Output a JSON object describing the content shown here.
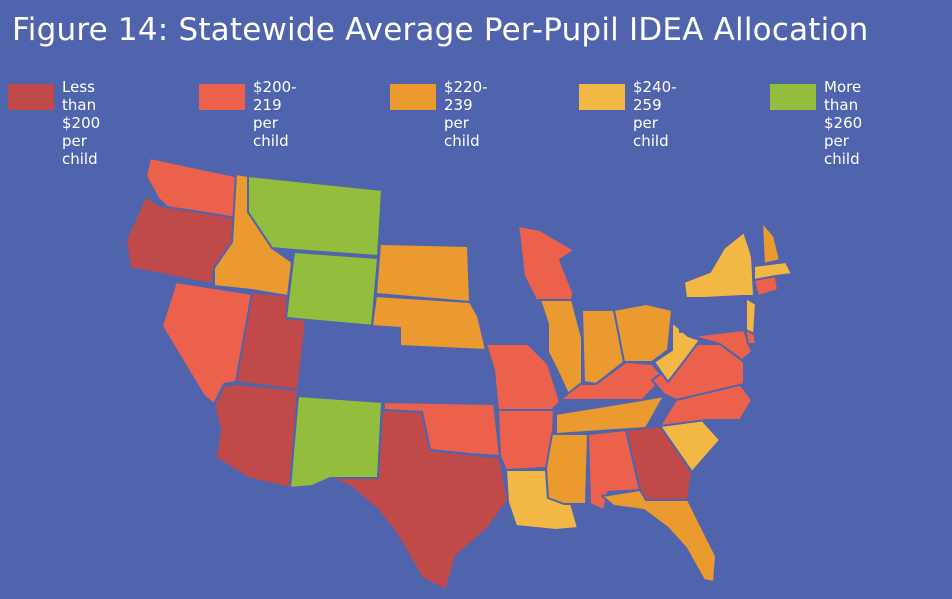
{
  "title": "Figure 14: Statewide Average Per-Pupil IDEA Allocation",
  "legend": [
    {
      "label": "Less than\n$200 per child",
      "color": "#c04a4a"
    },
    {
      "label": "$200-219\nper child",
      "color": "#ec614c"
    },
    {
      "label": "$220-239\nper child",
      "color": "#ea9a2f"
    },
    {
      "label": "$240-259\nper child",
      "color": "#f3b843"
    },
    {
      "label": "More than\n$260 per child",
      "color": "#93bd3d"
    }
  ],
  "no_data_color": "#5064ae",
  "states": [
    {
      "name": "WA",
      "category": 1
    },
    {
      "name": "OR",
      "category": 0
    },
    {
      "name": "CA",
      "category": -1
    },
    {
      "name": "NV",
      "category": 1
    },
    {
      "name": "ID",
      "category": 2
    },
    {
      "name": "MT",
      "category": 4
    },
    {
      "name": "WY",
      "category": 4
    },
    {
      "name": "UT",
      "category": 0
    },
    {
      "name": "AZ",
      "category": 0
    },
    {
      "name": "CO",
      "category": -1
    },
    {
      "name": "NM",
      "category": 4
    },
    {
      "name": "ND",
      "category": -1
    },
    {
      "name": "SD",
      "category": 2
    },
    {
      "name": "NE",
      "category": 2
    },
    {
      "name": "KS",
      "category": -1
    },
    {
      "name": "OK",
      "category": 1
    },
    {
      "name": "TX",
      "category": 0
    },
    {
      "name": "MN",
      "category": -1
    },
    {
      "name": "IA",
      "category": -1
    },
    {
      "name": "MO",
      "category": 1
    },
    {
      "name": "AR",
      "category": 1
    },
    {
      "name": "LA",
      "category": 3
    },
    {
      "name": "WI",
      "category": 1
    },
    {
      "name": "IL",
      "category": 2
    },
    {
      "name": "MI",
      "category": -1
    },
    {
      "name": "IN",
      "category": 2
    },
    {
      "name": "OH",
      "category": 2
    },
    {
      "name": "KY",
      "category": 1
    },
    {
      "name": "TN",
      "category": 2
    },
    {
      "name": "MS",
      "category": 2
    },
    {
      "name": "AL",
      "category": 1
    },
    {
      "name": "GA",
      "category": 0
    },
    {
      "name": "FL",
      "category": 2
    },
    {
      "name": "SC",
      "category": 3
    },
    {
      "name": "NC",
      "category": 1
    },
    {
      "name": "VA",
      "category": 1
    },
    {
      "name": "WV",
      "category": 3
    },
    {
      "name": "MD",
      "category": 1
    },
    {
      "name": "DE",
      "category": 1
    },
    {
      "name": "PA",
      "category": -1
    },
    {
      "name": "NJ",
      "category": 3
    },
    {
      "name": "NY",
      "category": 3
    },
    {
      "name": "CT",
      "category": 1
    },
    {
      "name": "RI",
      "category": -1
    },
    {
      "name": "MA",
      "category": 3
    },
    {
      "name": "VT",
      "category": -1
    },
    {
      "name": "NH",
      "category": 2
    },
    {
      "name": "ME",
      "category": -1
    }
  ]
}
